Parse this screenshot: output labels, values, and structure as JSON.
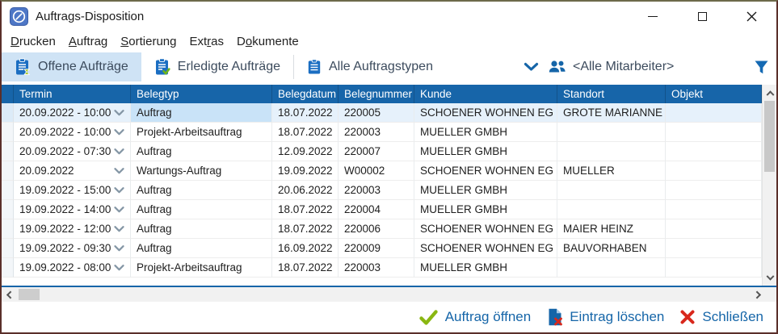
{
  "window": {
    "title": "Auftrags-Disposition"
  },
  "menu": {
    "items": [
      {
        "pre": "",
        "key": "D",
        "post": "rucken"
      },
      {
        "pre": "",
        "key": "A",
        "post": "uftrag"
      },
      {
        "pre": "",
        "key": "S",
        "post": "ortierung"
      },
      {
        "pre": "Ext",
        "key": "r",
        "post": "as"
      },
      {
        "pre": "D",
        "key": "o",
        "post": "kumente"
      }
    ]
  },
  "toolbar": {
    "tab_open": "Offene Aufträge",
    "tab_done": "Erledigte Aufträge",
    "tab_types": "Alle Auftragstypen",
    "employee_filter": "<Alle Mitarbeiter>"
  },
  "table": {
    "columns": [
      "Termin",
      "Belegtyp",
      "Belegdatum",
      "Belegnummer",
      "Kunde",
      "Standort",
      "Objekt"
    ],
    "rows": [
      {
        "termin": "20.09.2022 - 10:00",
        "belegtyp": "Auftrag",
        "belegdatum": "18.07.2022",
        "belegnummer": "220005",
        "kunde": "SCHOENER WOHNEN EG",
        "standort": "GROTE MARIANNE",
        "objekt": "",
        "selected": true
      },
      {
        "termin": "20.09.2022 - 10:00",
        "belegtyp": "Projekt-Arbeitsauftrag",
        "belegdatum": "18.07.2022",
        "belegnummer": "220003",
        "kunde": "MUELLER GMBH",
        "standort": "",
        "objekt": ""
      },
      {
        "termin": "20.09.2022 - 07:30",
        "belegtyp": "Auftrag",
        "belegdatum": "12.09.2022",
        "belegnummer": "220007",
        "kunde": "MUELLER GMBH",
        "standort": "",
        "objekt": ""
      },
      {
        "termin": "20.09.2022",
        "belegtyp": "Wartungs-Auftrag",
        "belegdatum": "19.09.2022",
        "belegnummer": "W00002",
        "kunde": "SCHOENER WOHNEN EG",
        "standort": "MUELLER",
        "objekt": ""
      },
      {
        "termin": "19.09.2022 - 15:00",
        "belegtyp": "Auftrag",
        "belegdatum": "20.06.2022",
        "belegnummer": "220003",
        "kunde": "MUELLER GMBH",
        "standort": "",
        "objekt": ""
      },
      {
        "termin": "19.09.2022 - 14:00",
        "belegtyp": "Auftrag",
        "belegdatum": "18.07.2022",
        "belegnummer": "220004",
        "kunde": "MUELLER GMBH",
        "standort": "",
        "objekt": ""
      },
      {
        "termin": "19.09.2022 - 12:00",
        "belegtyp": "Auftrag",
        "belegdatum": "18.07.2022",
        "belegnummer": "220006",
        "kunde": "SCHOENER WOHNEN EG",
        "standort": "MAIER HEINZ",
        "objekt": ""
      },
      {
        "termin": "19.09.2022 - 09:30",
        "belegtyp": "Auftrag",
        "belegdatum": "16.09.2022",
        "belegnummer": "220009",
        "kunde": "SCHOENER WOHNEN EG",
        "standort": "BAUVORHABEN",
        "objekt": ""
      },
      {
        "termin": "19.09.2022 - 08:00",
        "belegtyp": "Projekt-Arbeitsauftrag",
        "belegdatum": "18.07.2022",
        "belegnummer": "220003",
        "kunde": "MUELLER GMBH",
        "standort": "",
        "objekt": ""
      }
    ]
  },
  "footer": {
    "open_label": "Auftrag öffnen",
    "delete_label": "Eintrag löschen",
    "close_label": "Schließen"
  },
  "colors": {
    "header_bg": "#1765a9",
    "accent_blue": "#1565a8",
    "tab_selected_bg": "#cfe3f5",
    "selected_row_bg": "#e6f1fb",
    "focused_cell_bg": "#c9e3f8",
    "check_green": "#8ab711",
    "delete_red": "#d8281c"
  }
}
